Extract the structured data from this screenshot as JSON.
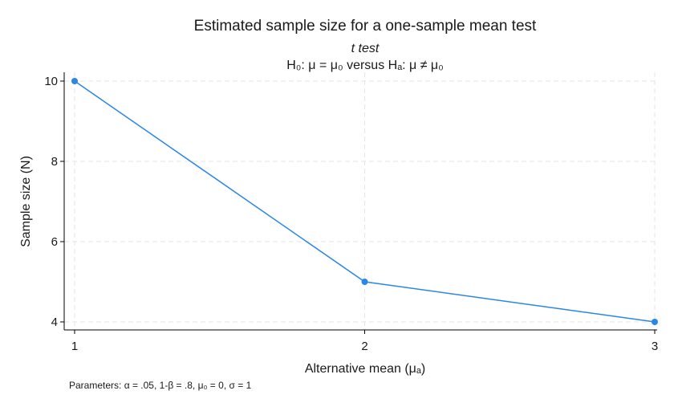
{
  "chart_data": {
    "type": "line",
    "title": "Estimated sample size for a one-sample mean test",
    "subtitle_line1": "t test",
    "subtitle_line2": "H₀: μ = μ₀  versus  Hₐ: μ ≠ μ₀",
    "xlabel": "Alternative mean (μₐ)",
    "ylabel": "Sample size (N)",
    "x_ticks": [
      1,
      2,
      3
    ],
    "y_ticks": [
      4,
      6,
      8,
      10
    ],
    "xlim": [
      1,
      3
    ],
    "ylim": [
      4,
      10
    ],
    "grid": true,
    "series": [
      {
        "x": [
          1,
          2,
          3
        ],
        "y": [
          10,
          5,
          4
        ],
        "color": "#2a86e8"
      }
    ],
    "note": "Parameters: α = .05, 1-β = .8, μ₀ = 0, σ = 1"
  }
}
